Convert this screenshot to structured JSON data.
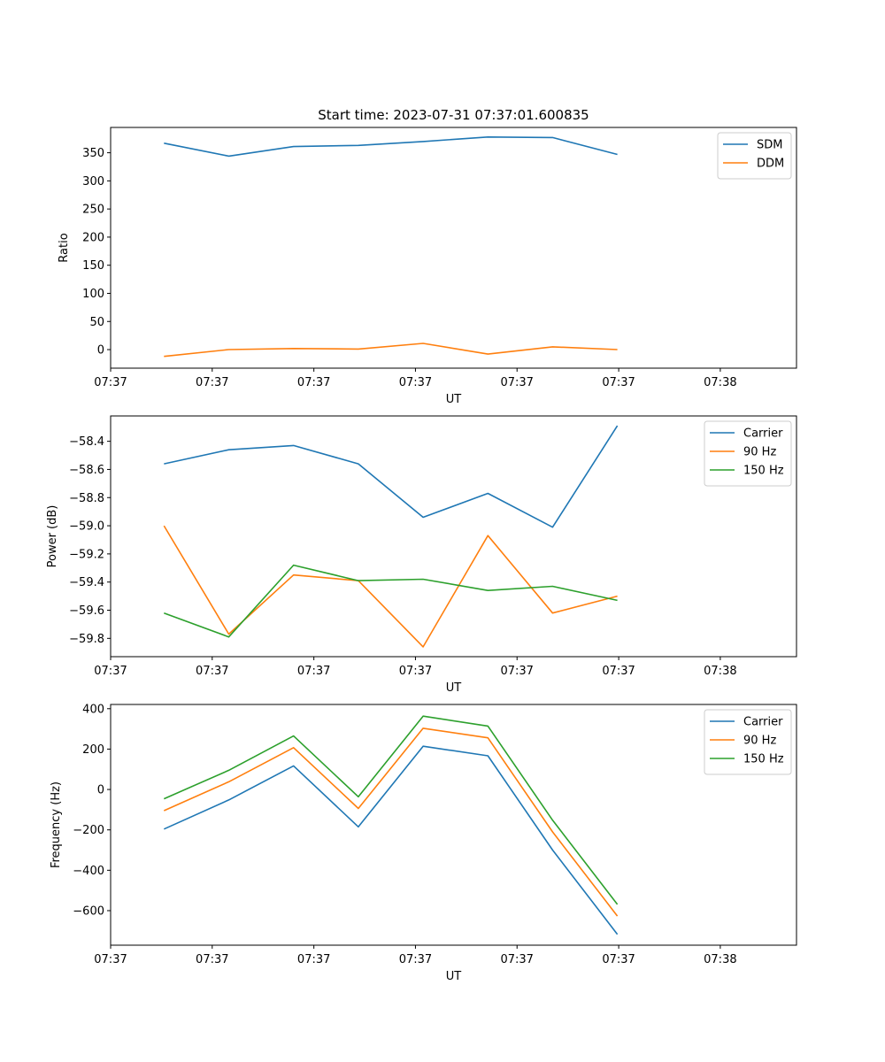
{
  "chart_data": [
    {
      "type": "line",
      "title": "Start time: 2023-07-31 07:37:01.600835",
      "xlabel": "UT",
      "ylabel": "Ratio",
      "xlim": [
        0,
        9.0
      ],
      "ylim": [
        -33,
        395
      ],
      "x": [
        0.7,
        1.55,
        2.4,
        3.25,
        4.1,
        4.95,
        5.8,
        6.65
      ],
      "xticks": [
        0,
        1.333,
        2.667,
        4.0,
        5.333,
        6.667,
        8.0
      ],
      "xtick_labels": [
        "07:37",
        "07:37",
        "07:37",
        "07:37",
        "07:37",
        "07:37",
        "07:38"
      ],
      "yticks": [
        0,
        50,
        100,
        150,
        200,
        250,
        300,
        350
      ],
      "ytick_labels": [
        "0",
        "50",
        "100",
        "150",
        "200",
        "250",
        "300",
        "350"
      ],
      "legend": "top-right",
      "series": [
        {
          "name": "SDM",
          "color": "#1f77b4",
          "values": [
            367,
            344,
            361,
            363,
            370,
            378,
            377,
            347
          ]
        },
        {
          "name": "DDM",
          "color": "#ff7f0e",
          "values": [
            -12,
            0,
            2,
            1,
            11,
            -8,
            5,
            0
          ]
        }
      ]
    },
    {
      "type": "line",
      "title": "",
      "xlabel": "UT",
      "ylabel": "Power (dB)",
      "xlim": [
        0,
        9.0
      ],
      "ylim": [
        -59.93,
        -58.22
      ],
      "x": [
        0.7,
        1.55,
        2.4,
        3.25,
        4.1,
        4.95,
        5.8,
        6.65
      ],
      "xticks": [
        0,
        1.333,
        2.667,
        4.0,
        5.333,
        6.667,
        8.0
      ],
      "xtick_labels": [
        "07:37",
        "07:37",
        "07:37",
        "07:37",
        "07:37",
        "07:37",
        "07:38"
      ],
      "yticks": [
        -59.8,
        -59.6,
        -59.4,
        -59.2,
        -59.0,
        -58.8,
        -58.6,
        -58.4
      ],
      "ytick_labels": [
        "−59.8",
        "−59.6",
        "−59.4",
        "−59.2",
        "−59.0",
        "−58.8",
        "−58.6",
        "−58.4"
      ],
      "legend": "top-right",
      "series": [
        {
          "name": "Carrier",
          "color": "#1f77b4",
          "values": [
            -58.56,
            -58.46,
            -58.43,
            -58.56,
            -58.94,
            -58.77,
            -59.01,
            -58.29
          ]
        },
        {
          "name": "90 Hz",
          "color": "#ff7f0e",
          "values": [
            -59.0,
            -59.77,
            -59.35,
            -59.39,
            -59.86,
            -59.07,
            -59.62,
            -59.5
          ]
        },
        {
          "name": "150 Hz",
          "color": "#2ca02c",
          "values": [
            -59.62,
            -59.79,
            -59.28,
            -59.39,
            -59.38,
            -59.46,
            -59.43,
            -59.53
          ]
        }
      ]
    },
    {
      "type": "line",
      "title": "",
      "xlabel": "UT",
      "ylabel": "Frequency (Hz)",
      "xlim": [
        0,
        9.0
      ],
      "ylim": [
        -771,
        421
      ],
      "x": [
        0.7,
        1.55,
        2.4,
        3.25,
        4.1,
        4.95,
        5.8,
        6.65
      ],
      "xticks": [
        0,
        1.333,
        2.667,
        4.0,
        5.333,
        6.667,
        8.0
      ],
      "xtick_labels": [
        "07:37",
        "07:37",
        "07:37",
        "07:37",
        "07:37",
        "07:37",
        "07:38"
      ],
      "yticks": [
        -600,
        -400,
        -200,
        0,
        200,
        400
      ],
      "ytick_labels": [
        "−600",
        "−400",
        "−200",
        "0",
        "200",
        "400"
      ],
      "legend": "top-right",
      "series": [
        {
          "name": "Carrier",
          "color": "#1f77b4",
          "values": [
            -196,
            -52,
            117,
            -185,
            214,
            167,
            -300,
            -717
          ]
        },
        {
          "name": "90 Hz",
          "color": "#ff7f0e",
          "values": [
            -105,
            38,
            207,
            -94,
            303,
            256,
            -210,
            -627
          ]
        },
        {
          "name": "150 Hz",
          "color": "#2ca02c",
          "values": [
            -46,
            95,
            265,
            -36,
            363,
            314,
            -152,
            -569
          ]
        }
      ]
    }
  ]
}
